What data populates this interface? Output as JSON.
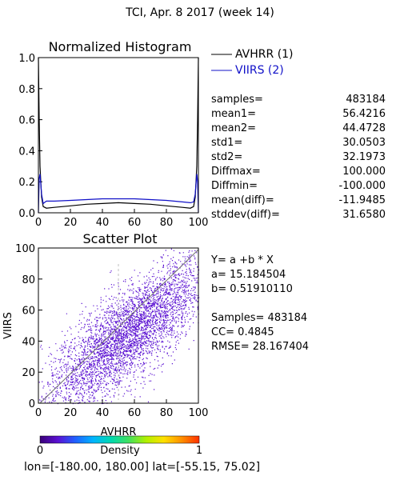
{
  "title": "TCI,  Apr. 8 2017 (week 14)",
  "histogram": {
    "title": "Normalized Histogram",
    "legend": [
      {
        "label": "AVHRR (1)",
        "color": "#000000"
      },
      {
        "label": "VIIRS (2)",
        "color": "#1010c8"
      }
    ],
    "chart_data": {
      "type": "line",
      "xlim": [
        0,
        100
      ],
      "ylim": [
        0,
        1.0
      ],
      "xticks": [
        "0",
        "20",
        "40",
        "60",
        "80",
        "100"
      ],
      "yticks": [
        "0.0",
        "0.2",
        "0.4",
        "0.6",
        "0.8",
        "1.0"
      ],
      "series": [
        {
          "name": "AVHRR (1)",
          "color": "#000000",
          "x": [
            0,
            0.5,
            1,
            2,
            3,
            5,
            10,
            20,
            30,
            40,
            50,
            60,
            70,
            80,
            90,
            95,
            97,
            98,
            99,
            99.5,
            100
          ],
          "y": [
            1.0,
            0.6,
            0.3,
            0.1,
            0.04,
            0.03,
            0.035,
            0.045,
            0.055,
            0.06,
            0.065,
            0.06,
            0.055,
            0.045,
            0.035,
            0.03,
            0.04,
            0.1,
            0.3,
            0.6,
            1.0
          ]
        },
        {
          "name": "VIIRS (2)",
          "color": "#1010c8",
          "x": [
            0,
            0.5,
            1,
            2,
            3,
            5,
            10,
            20,
            30,
            40,
            50,
            60,
            70,
            80,
            90,
            95,
            97,
            98,
            99,
            99.5,
            100
          ],
          "y": [
            0.0,
            0.22,
            0.25,
            0.12,
            0.06,
            0.075,
            0.075,
            0.08,
            0.085,
            0.09,
            0.09,
            0.09,
            0.085,
            0.08,
            0.07,
            0.065,
            0.07,
            0.12,
            0.25,
            0.2,
            0.0
          ]
        }
      ]
    },
    "stats": [
      {
        "label": "samples=",
        "value": "483184"
      },
      {
        "label": "mean1=",
        "value": "56.4216"
      },
      {
        "label": "mean2=",
        "value": "44.4728"
      },
      {
        "label": "std1=",
        "value": "30.0503"
      },
      {
        "label": "std2=",
        "value": "32.1973"
      },
      {
        "label": "Diffmax=",
        "value": "100.000"
      },
      {
        "label": "Diffmin=",
        "value": "-100.000"
      },
      {
        "label": "mean(diff)=",
        "value": "-11.9485"
      },
      {
        "label": "stddev(diff)=",
        "value": "31.6580"
      }
    ]
  },
  "scatter": {
    "title": "Scatter Plot",
    "chart_data": {
      "type": "scatter",
      "xlabel": "AVHRR",
      "ylabel": "VIIRS",
      "xlim": [
        0,
        100
      ],
      "ylim": [
        0,
        100
      ],
      "xticks": [
        "0",
        "20",
        "40",
        "60",
        "80",
        "100"
      ],
      "yticks": [
        "0",
        "20",
        "40",
        "60",
        "80",
        "100"
      ],
      "point_color": "#5a10d2",
      "diagonal_color": "#707070",
      "samples": 483184,
      "regression": {
        "a": 15.184504,
        "b": 0.5191011
      }
    },
    "fit_lines": [
      "Y= a +b * X",
      "a= 15.184504",
      "b= 0.51910110"
    ],
    "summary_lines": [
      "Samples= 483184",
      "CC=  0.4845",
      "RMSE= 28.167404"
    ]
  },
  "colorbar": {
    "label": "Density",
    "min_label": "0",
    "max_label": "1",
    "colors": [
      "#3a0078",
      "#5a10d2",
      "#2060ff",
      "#00b4ff",
      "#00d8b0",
      "#40e060",
      "#b0f000",
      "#ffe000",
      "#ff9000",
      "#ff3000"
    ]
  },
  "footer": "lon=[-180.00, 180.00] lat=[-55.15, 75.02]"
}
